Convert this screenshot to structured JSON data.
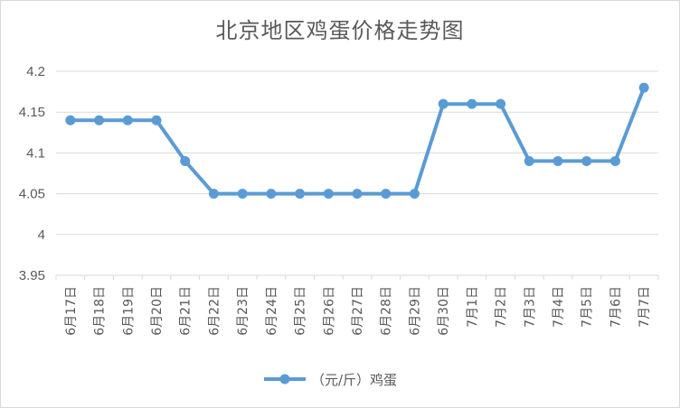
{
  "chart_data": {
    "type": "line",
    "title": "北京地区鸡蛋价格走势图",
    "categories": [
      "6月17日",
      "6月18日",
      "6月19日",
      "6月20日",
      "6月21日",
      "6月22日",
      "6月23日",
      "6月24日",
      "6月25日",
      "6月26日",
      "6月27日",
      "6月28日",
      "6月29日",
      "6月30日",
      "7月1日",
      "7月2日",
      "7月3日",
      "7月4日",
      "7月5日",
      "7月6日",
      "7月7日"
    ],
    "series": [
      {
        "name": "（元/斤）鸡蛋",
        "values": [
          4.14,
          4.14,
          4.14,
          4.14,
          4.09,
          4.05,
          4.05,
          4.05,
          4.05,
          4.05,
          4.05,
          4.05,
          4.05,
          4.16,
          4.16,
          4.16,
          4.09,
          4.09,
          4.09,
          4.09,
          4.18
        ],
        "color": "#5b9bd5"
      }
    ],
    "ylim": [
      3.95,
      4.2
    ],
    "yticks": [
      "3.95",
      "4",
      "4.05",
      "4.1",
      "4.15",
      "4.2"
    ],
    "grid": true,
    "legend": "bottom"
  }
}
